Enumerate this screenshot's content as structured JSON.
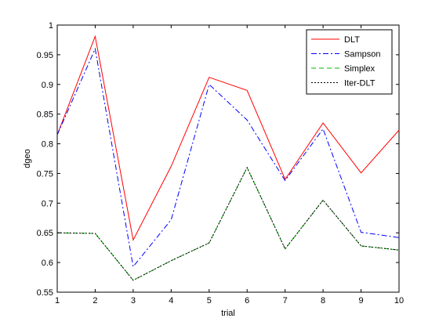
{
  "chart_data": {
    "type": "line",
    "title": "",
    "xlabel": "trial",
    "ylabel": "dgeo",
    "xlim": [
      1,
      10
    ],
    "ylim": [
      0.55,
      1.0
    ],
    "x": [
      1,
      2,
      3,
      4,
      5,
      6,
      7,
      8,
      9,
      10
    ],
    "xticks": [
      "1",
      "2",
      "3",
      "4",
      "5",
      "6",
      "7",
      "8",
      "9",
      "10"
    ],
    "yticks": [
      "0.55",
      "0.6",
      "0.65",
      "0.7",
      "0.75",
      "0.8",
      "0.85",
      "0.9",
      "0.95",
      "1"
    ],
    "grid": false,
    "legend_position": "top-right",
    "series": [
      {
        "name": "DLT",
        "color": "#ff0000",
        "style": "solid",
        "values": [
          0.815,
          0.981,
          0.638,
          0.762,
          0.912,
          0.89,
          0.74,
          0.835,
          0.751,
          0.823
        ]
      },
      {
        "name": "Sampson",
        "color": "#0000ff",
        "style": "dashdot",
        "values": [
          0.815,
          0.96,
          0.593,
          0.672,
          0.9,
          0.84,
          0.738,
          0.825,
          0.651,
          0.642
        ]
      },
      {
        "name": "Simplex",
        "color": "#00bb00",
        "style": "dashed",
        "values": [
          0.65,
          0.649,
          0.57,
          0.603,
          0.633,
          0.76,
          0.623,
          0.705,
          0.628,
          0.621
        ]
      },
      {
        "name": "Iter-DLT",
        "color": "#000000",
        "style": "dotted",
        "values": [
          0.65,
          0.649,
          0.57,
          0.603,
          0.633,
          0.76,
          0.623,
          0.705,
          0.628,
          0.621
        ]
      }
    ]
  }
}
